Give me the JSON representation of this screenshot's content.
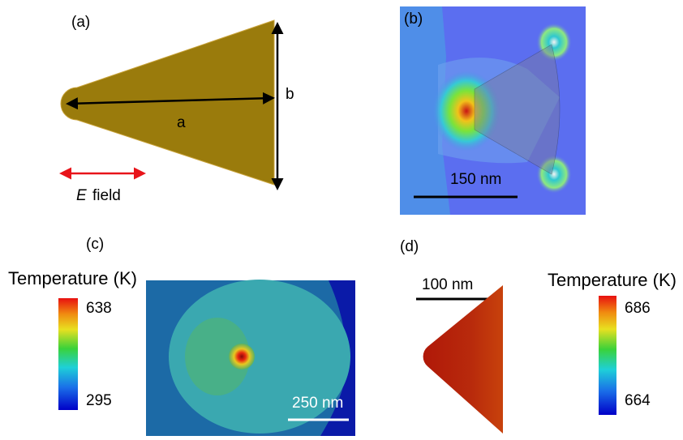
{
  "panels": {
    "a": {
      "label": "(a)",
      "length_label": "a",
      "width_label": "b",
      "field_symbol": "E",
      "field_word": "field"
    },
    "b": {
      "label": "(b)",
      "scale_bar": "150 nm"
    },
    "c": {
      "label": "(c)",
      "colorbar_title": "Temperature (K)",
      "colorbar_max": 638,
      "colorbar_min": 295,
      "scale_bar": "250 nm"
    },
    "d": {
      "label": "(d)",
      "colorbar_title": "Temperature (K)",
      "colorbar_max": 686,
      "colorbar_min": 664,
      "scale_bar": "100 nm"
    }
  }
}
